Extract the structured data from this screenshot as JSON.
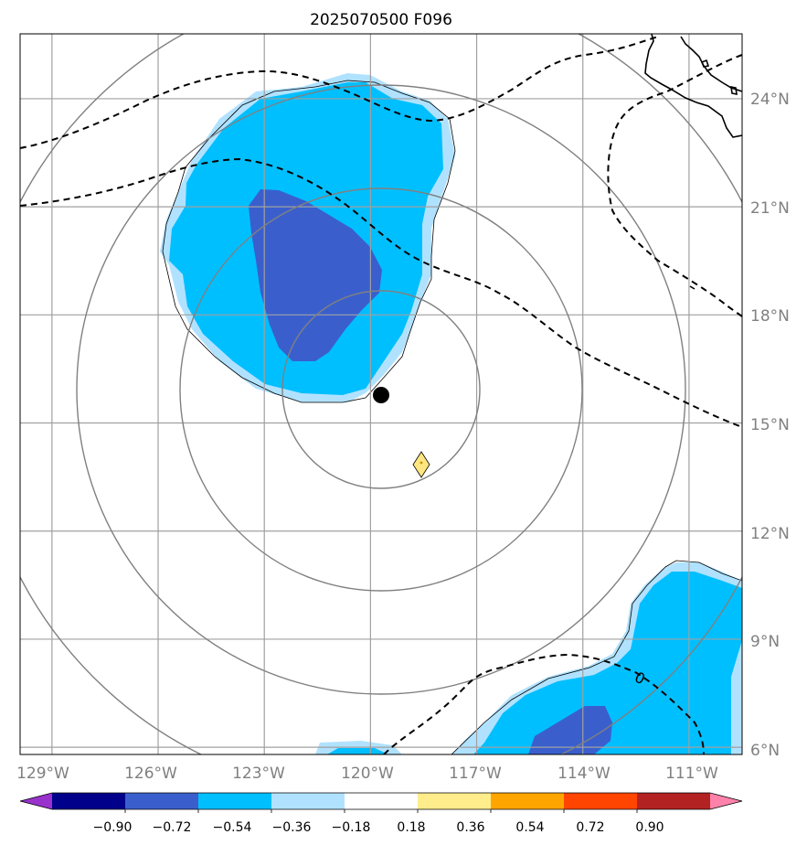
{
  "title": "2025070500 F096",
  "map": {
    "lon_range": [
      -129.9,
      -109.5
    ],
    "lat_range": [
      5.8,
      25.8
    ],
    "lon_labels": [
      "129°W",
      "126°W",
      "123°W",
      "120°W",
      "117°W",
      "114°W",
      "111°W"
    ],
    "lon_values": [
      -129,
      -126,
      -123,
      -120,
      -117,
      -114,
      -111
    ],
    "lat_labels": [
      "24°N",
      "21°N",
      "18°N",
      "15°N",
      "12°N",
      "9°N",
      "6°N"
    ],
    "lat_values": [
      24,
      21,
      18,
      15,
      12,
      9,
      6
    ],
    "gridline_color": "#a0a0a0",
    "range_ring_color": "#808080",
    "storm_center": {
      "lon": -119.7,
      "lat": 15.8,
      "icon": "black-dot-icon"
    },
    "forecast_marker": {
      "lon": -118.6,
      "lat": 13.9,
      "icon": "yellow-diamond-icon"
    },
    "contour_label": "0",
    "dashed_contour_style": "black-dashed"
  },
  "colorbar": {
    "colors": [
      "#9932cc",
      "#00008b",
      "#3a5fcd",
      "#00bfff",
      "#b0e2ff",
      "#ffffff",
      "#ffec8b",
      "#ffa500",
      "#ff4500",
      "#b22222",
      "#ff82ab"
    ],
    "tick_labels": [
      "−0.90",
      "−0.72",
      "−0.54",
      "−0.36",
      "−0.18",
      "0.18",
      "0.36",
      "0.54",
      "0.72",
      "0.90"
    ],
    "tick_values": [
      -0.9,
      -0.72,
      -0.54,
      -0.36,
      -0.18,
      0.18,
      0.36,
      0.54,
      0.72,
      0.9
    ],
    "extend": "both"
  }
}
